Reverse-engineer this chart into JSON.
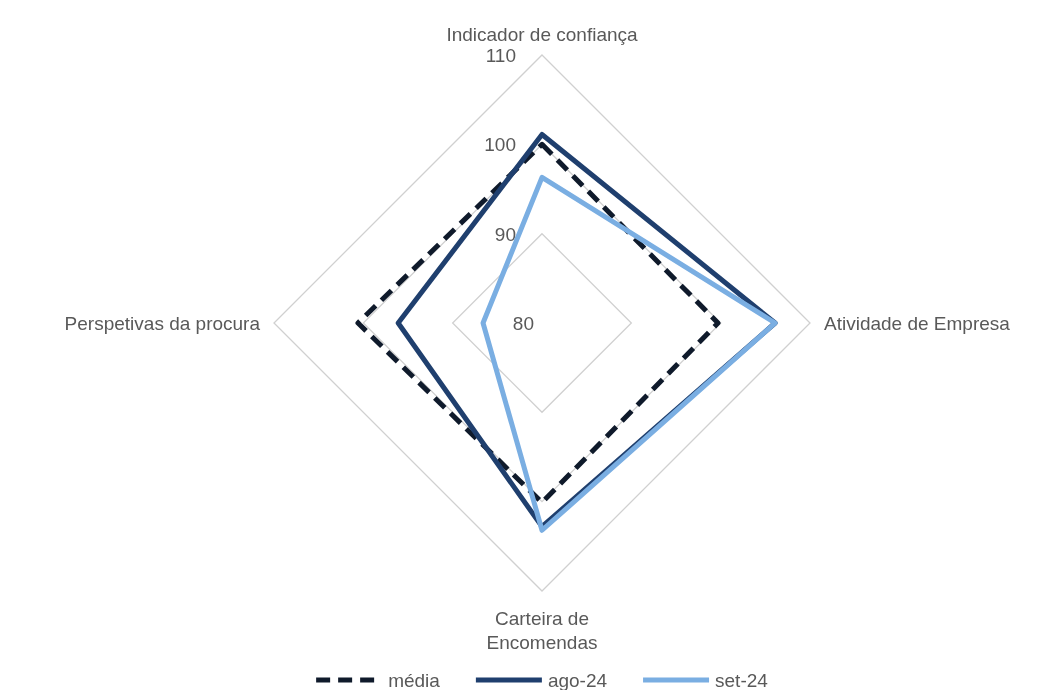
{
  "chart_data": {
    "type": "radar",
    "categories": [
      "Indicador de confiança",
      "Atividade de Empresa",
      "Carteira de Encomendas",
      "Perspetivas da procura"
    ],
    "ylim": [
      80,
      110
    ],
    "yticks": [
      80,
      90,
      100,
      110
    ],
    "grid": true,
    "legend": "bottom",
    "marker": "none",
    "series": [
      {
        "name": "média",
        "color": "#0f1a2b",
        "line_style": "dashed",
        "values": [
          100,
          99.7,
          100.1,
          100.6
        ]
      },
      {
        "name": "ago-24",
        "color": "#1f3f6e",
        "line_style": "solid",
        "values": [
          101.1,
          106.1,
          102.8,
          96.1
        ]
      },
      {
        "name": "set-24",
        "color": "#7aaee2",
        "line_style": "solid",
        "values": [
          96.3,
          106.1,
          103.2,
          86.6
        ]
      }
    ]
  }
}
